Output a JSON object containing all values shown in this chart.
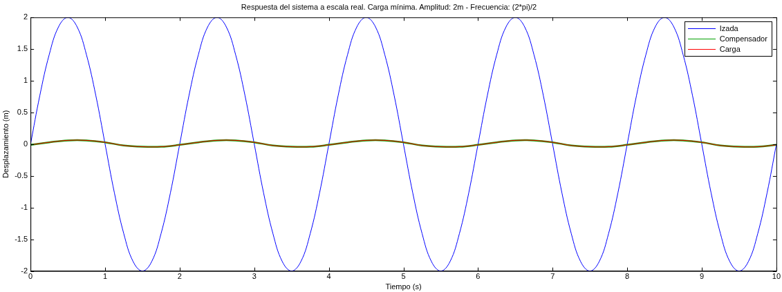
{
  "chart_data": {
    "type": "line",
    "title": "Respuesta del sistema a escala real. Carga mínima. Amplitud: 2m - Frecuencia: (2*pi)/2",
    "xlabel": "Tiempo (s)",
    "ylabel": "Desplazamiento (m)",
    "xlim": [
      0,
      10
    ],
    "xticks": [
      0,
      1,
      2,
      3,
      4,
      5,
      6,
      7,
      8,
      9,
      10
    ],
    "ylim": [
      -2,
      2
    ],
    "yticks": [
      -2,
      -1.5,
      -1,
      -0.5,
      0,
      0.5,
      1,
      1.5,
      2
    ],
    "grid": false,
    "legend": "top right",
    "marker": "none",
    "line_style": "solid",
    "series": [
      {
        "name": "Izada",
        "color": "#0000ff",
        "x": [
          0,
          0.125,
          0.25,
          0.375,
          0.5,
          0.625,
          0.75,
          0.875,
          1,
          1.125,
          1.25,
          1.375,
          1.5,
          1.625,
          1.75,
          1.875,
          2,
          2.125,
          2.25,
          2.375,
          2.5,
          2.625,
          2.75,
          2.875,
          3,
          3.125,
          3.25,
          3.375,
          3.5,
          3.625,
          3.75,
          3.875,
          4,
          4.125,
          4.25,
          4.375,
          4.5,
          4.625,
          4.75,
          4.875,
          5,
          5.125,
          5.25,
          5.375,
          5.5,
          5.625,
          5.75,
          5.875,
          6,
          6.125,
          6.25,
          6.375,
          6.5,
          6.625,
          6.75,
          6.875,
          7,
          7.125,
          7.25,
          7.375,
          7.5,
          7.625,
          7.75,
          7.875,
          8,
          8.125,
          8.25,
          8.375,
          8.5,
          8.625,
          8.75,
          8.875,
          9,
          9.125,
          9.25,
          9.375,
          9.5,
          9.625,
          9.75,
          9.875,
          10
        ],
        "values": [
          0,
          0.77,
          1.41,
          1.85,
          2,
          1.85,
          1.41,
          0.77,
          0,
          -0.77,
          -1.41,
          -1.85,
          -2,
          -1.85,
          -1.41,
          -0.77,
          0,
          0.77,
          1.41,
          1.85,
          2,
          1.85,
          1.41,
          0.77,
          0,
          -0.77,
          -1.41,
          -1.85,
          -2,
          -1.85,
          -1.41,
          -0.77,
          0,
          0.77,
          1.41,
          1.85,
          2,
          1.85,
          1.41,
          0.77,
          0,
          -0.77,
          -1.41,
          -1.85,
          -2,
          -1.85,
          -1.41,
          -0.77,
          0,
          0.77,
          1.41,
          1.85,
          2,
          1.85,
          1.41,
          0.77,
          0,
          -0.77,
          -1.41,
          -1.85,
          -2,
          -1.85,
          -1.41,
          -0.77,
          0,
          0.77,
          1.41,
          1.85,
          2,
          1.85,
          1.41,
          0.77,
          0,
          -0.77,
          -1.41,
          -1.85,
          -2,
          -1.85,
          -1.41,
          -0.77,
          0
        ]
      },
      {
        "name": "Compensador",
        "color": "#00a000",
        "x": [
          0,
          0.25,
          0.5,
          0.75,
          1,
          1.25,
          1.5,
          1.75,
          2,
          2.25,
          2.5,
          2.75,
          3,
          3.25,
          3.5,
          3.75,
          4,
          4.25,
          4.5,
          4.75,
          5,
          5.25,
          5.5,
          5.75,
          6,
          6.25,
          6.5,
          6.75,
          7,
          7.25,
          7.5,
          7.75,
          8,
          8.25,
          8.5,
          8.75,
          9,
          9.25,
          9.5,
          9.75,
          10
        ],
        "values": [
          -0.01,
          0.03,
          0.06,
          0.06,
          0.03,
          -0.02,
          -0.04,
          -0.04,
          -0.01,
          0.03,
          0.06,
          0.06,
          0.03,
          -0.02,
          -0.04,
          -0.04,
          -0.01,
          0.03,
          0.06,
          0.06,
          0.03,
          -0.02,
          -0.04,
          -0.04,
          -0.01,
          0.03,
          0.06,
          0.06,
          0.03,
          -0.02,
          -0.04,
          -0.04,
          -0.01,
          0.03,
          0.06,
          0.06,
          0.03,
          -0.02,
          -0.04,
          -0.04,
          -0.01
        ]
      },
      {
        "name": "Carga",
        "color": "#ff0000",
        "x": [
          0,
          0.25,
          0.5,
          0.75,
          1,
          1.25,
          1.5,
          1.75,
          2,
          2.25,
          2.5,
          2.75,
          3,
          3.25,
          3.5,
          3.75,
          4,
          4.25,
          4.5,
          4.75,
          5,
          5.25,
          5.5,
          5.75,
          6,
          6.25,
          6.5,
          6.75,
          7,
          7.25,
          7.5,
          7.75,
          8,
          8.25,
          8.5,
          8.75,
          9,
          9.25,
          9.5,
          9.75,
          10
        ],
        "values": [
          -0.01,
          0.03,
          0.06,
          0.06,
          0.03,
          -0.02,
          -0.04,
          -0.04,
          -0.01,
          0.03,
          0.06,
          0.06,
          0.03,
          -0.02,
          -0.04,
          -0.04,
          -0.01,
          0.03,
          0.06,
          0.06,
          0.03,
          -0.02,
          -0.04,
          -0.04,
          -0.01,
          0.03,
          0.06,
          0.06,
          0.03,
          -0.02,
          -0.04,
          -0.04,
          -0.01,
          0.03,
          0.06,
          0.06,
          0.03,
          -0.02,
          -0.04,
          -0.04,
          -0.01
        ]
      }
    ]
  }
}
